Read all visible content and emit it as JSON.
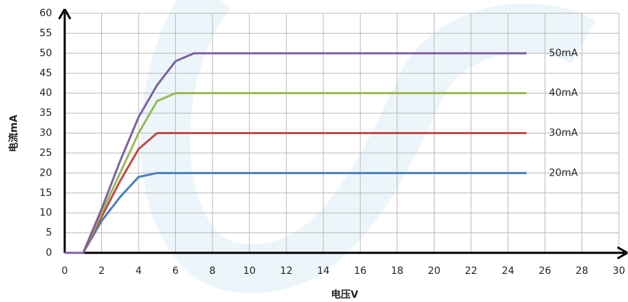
{
  "chart_data": {
    "type": "line",
    "xlabel": "电压V",
    "ylabel": "电流mA",
    "x": [
      0,
      1,
      2,
      3,
      4,
      5,
      6,
      7,
      8,
      10,
      15,
      20,
      25
    ],
    "series": [
      {
        "name": "20mA",
        "color": "#4a7ebb",
        "values": [
          0,
          0,
          8,
          14,
          19,
          20,
          20,
          20,
          20,
          20,
          20,
          20,
          20
        ]
      },
      {
        "name": "30mA",
        "color": "#be4b48",
        "values": [
          0,
          0,
          9,
          18,
          26,
          30,
          30,
          30,
          30,
          30,
          30,
          30,
          30
        ]
      },
      {
        "name": "40mA",
        "color": "#98b954",
        "values": [
          0,
          0,
          10,
          20,
          30,
          38,
          40,
          40,
          40,
          40,
          40,
          40,
          40
        ]
      },
      {
        "name": "50mA",
        "color": "#7d60a0",
        "values": [
          0,
          0,
          11,
          23,
          34,
          42,
          48,
          50,
          50,
          50,
          50,
          50,
          50
        ]
      }
    ],
    "xlim": [
      0,
      30
    ],
    "xticks": [
      0,
      2,
      4,
      6,
      8,
      10,
      12,
      14,
      16,
      18,
      20,
      22,
      24,
      26,
      28,
      30
    ],
    "ylim": [
      0,
      60
    ],
    "yticks": [
      0,
      5,
      10,
      15,
      20,
      25,
      30,
      35,
      40,
      45,
      50,
      55,
      60
    ],
    "grid": true
  }
}
